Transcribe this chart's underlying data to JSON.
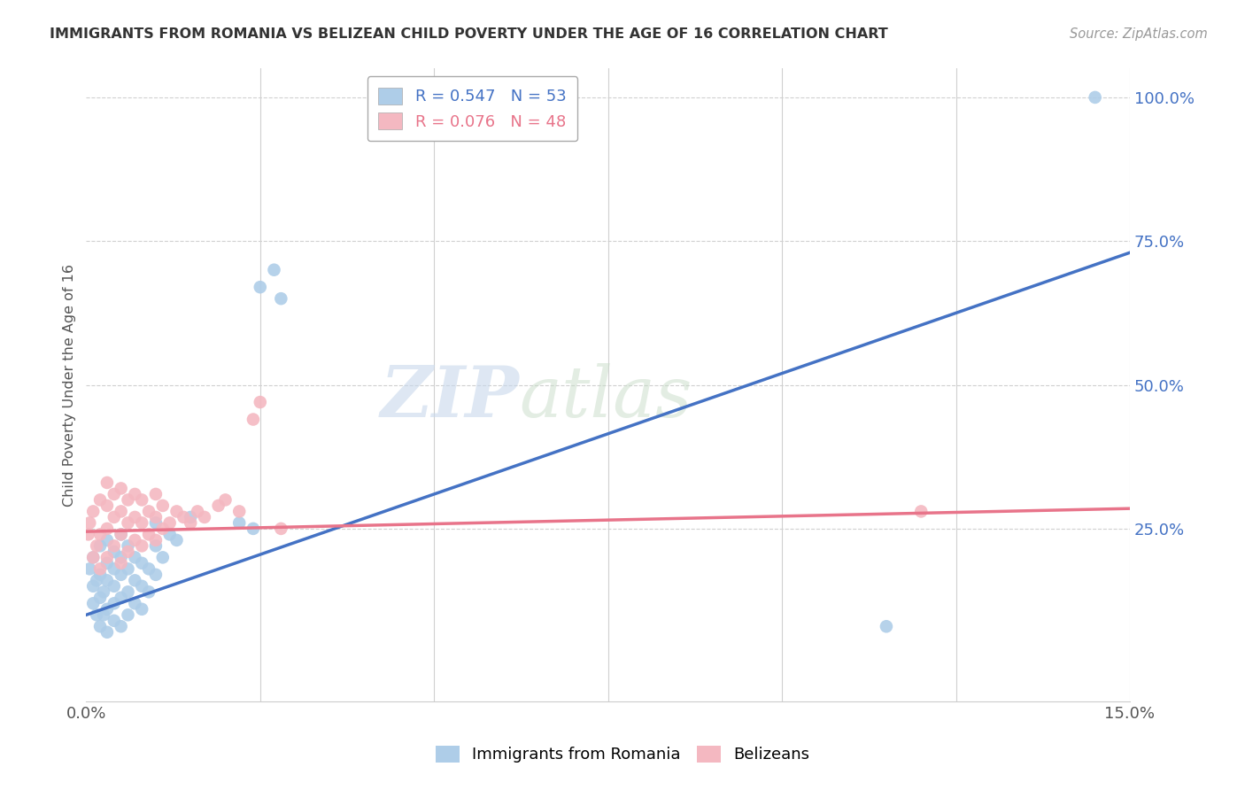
{
  "title": "IMMIGRANTS FROM ROMANIA VS BELIZEAN CHILD POVERTY UNDER THE AGE OF 16 CORRELATION CHART",
  "source": "Source: ZipAtlas.com",
  "ylabel": "Child Poverty Under the Age of 16",
  "xlim": [
    0.0,
    0.15
  ],
  "ylim": [
    -0.05,
    1.05
  ],
  "xticks": [
    0.0,
    0.025,
    0.05,
    0.075,
    0.1,
    0.125,
    0.15
  ],
  "xtick_labels": [
    "0.0%",
    "",
    "",
    "",
    "",
    "",
    "15.0%"
  ],
  "ytick_labels_right": [
    "25.0%",
    "50.0%",
    "75.0%",
    "100.0%"
  ],
  "ytick_vals_right": [
    0.25,
    0.5,
    0.75,
    1.0
  ],
  "romania_R": 0.547,
  "romania_N": 53,
  "belizean_R": 0.076,
  "belizean_N": 48,
  "blue_color": "#aecde8",
  "pink_color": "#f4b8c1",
  "blue_line_color": "#4472c4",
  "pink_line_color": "#e8748a",
  "legend_blue_text_color": "#4472c4",
  "legend_pink_text_color": "#e8748a",
  "watermark_zip": "ZIP",
  "watermark_atlas": "atlas",
  "grid_color": "#d0d0d0",
  "background_color": "#ffffff",
  "romania_scatter_x": [
    0.0005,
    0.001,
    0.001,
    0.001,
    0.0015,
    0.0015,
    0.002,
    0.002,
    0.002,
    0.002,
    0.0025,
    0.0025,
    0.003,
    0.003,
    0.003,
    0.003,
    0.003,
    0.004,
    0.004,
    0.004,
    0.004,
    0.004,
    0.005,
    0.005,
    0.005,
    0.005,
    0.005,
    0.006,
    0.006,
    0.006,
    0.006,
    0.007,
    0.007,
    0.007,
    0.008,
    0.008,
    0.008,
    0.009,
    0.009,
    0.01,
    0.01,
    0.01,
    0.011,
    0.012,
    0.013,
    0.015,
    0.022,
    0.024,
    0.025,
    0.027,
    0.028,
    0.145,
    0.115
  ],
  "romania_scatter_y": [
    0.18,
    0.12,
    0.15,
    0.2,
    0.1,
    0.16,
    0.08,
    0.13,
    0.17,
    0.22,
    0.1,
    0.14,
    0.07,
    0.11,
    0.16,
    0.19,
    0.23,
    0.09,
    0.12,
    0.15,
    0.18,
    0.21,
    0.08,
    0.13,
    0.17,
    0.2,
    0.24,
    0.1,
    0.14,
    0.18,
    0.22,
    0.12,
    0.16,
    0.2,
    0.11,
    0.15,
    0.19,
    0.14,
    0.18,
    0.17,
    0.22,
    0.26,
    0.2,
    0.24,
    0.23,
    0.27,
    0.26,
    0.25,
    0.67,
    0.7,
    0.65,
    1.0,
    0.08
  ],
  "belizean_scatter_x": [
    0.0003,
    0.0005,
    0.001,
    0.001,
    0.0015,
    0.002,
    0.002,
    0.002,
    0.003,
    0.003,
    0.003,
    0.003,
    0.004,
    0.004,
    0.004,
    0.005,
    0.005,
    0.005,
    0.005,
    0.006,
    0.006,
    0.006,
    0.007,
    0.007,
    0.007,
    0.008,
    0.008,
    0.008,
    0.009,
    0.009,
    0.01,
    0.01,
    0.01,
    0.011,
    0.011,
    0.012,
    0.013,
    0.014,
    0.015,
    0.016,
    0.017,
    0.019,
    0.02,
    0.022,
    0.024,
    0.025,
    0.12,
    0.028
  ],
  "belizean_scatter_y": [
    0.24,
    0.26,
    0.2,
    0.28,
    0.22,
    0.18,
    0.24,
    0.3,
    0.2,
    0.25,
    0.29,
    0.33,
    0.22,
    0.27,
    0.31,
    0.19,
    0.24,
    0.28,
    0.32,
    0.21,
    0.26,
    0.3,
    0.23,
    0.27,
    0.31,
    0.22,
    0.26,
    0.3,
    0.24,
    0.28,
    0.23,
    0.27,
    0.31,
    0.25,
    0.29,
    0.26,
    0.28,
    0.27,
    0.26,
    0.28,
    0.27,
    0.29,
    0.3,
    0.28,
    0.44,
    0.47,
    0.28,
    0.25
  ],
  "blue_line_x0": 0.0,
  "blue_line_y0": 0.1,
  "blue_line_x1": 0.15,
  "blue_line_y1": 0.73,
  "pink_line_x0": 0.0,
  "pink_line_y0": 0.245,
  "pink_line_x1": 0.15,
  "pink_line_y1": 0.285
}
